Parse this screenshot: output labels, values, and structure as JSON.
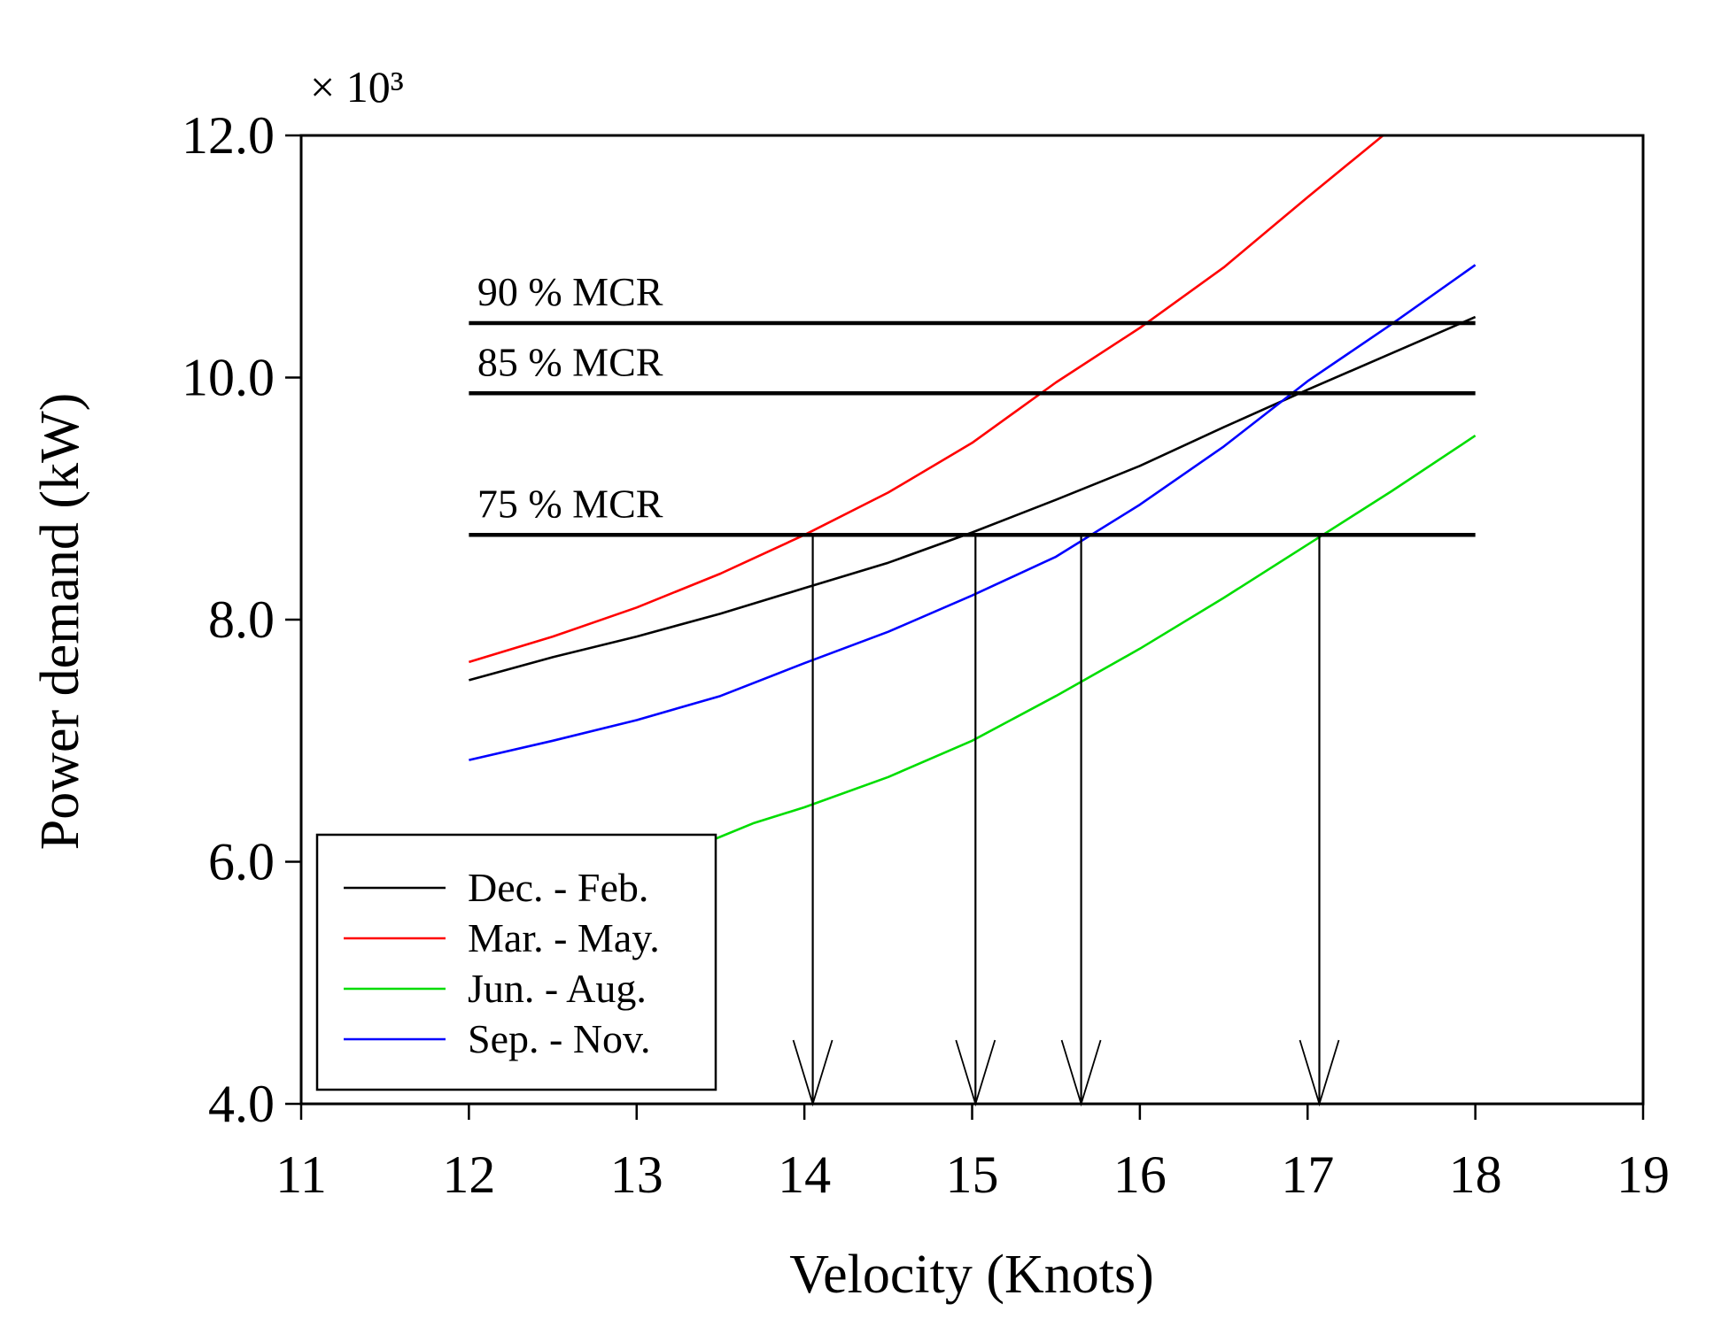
{
  "chart_data": {
    "type": "line",
    "xlabel": "Velocity (Knots)",
    "ylabel": "Power demand (kW)",
    "y_multiplier": "× 10³",
    "xlim": [
      11,
      19
    ],
    "ylim": [
      4.0,
      12.0
    ],
    "x_ticks": [
      "11",
      "12",
      "13",
      "14",
      "15",
      "16",
      "17",
      "18",
      "19"
    ],
    "y_ticks": [
      "4.0",
      "6.0",
      "8.0",
      "10.0",
      "12.0"
    ],
    "x_tick_values": [
      11,
      12,
      13,
      14,
      15,
      16,
      17,
      18,
      19
    ],
    "y_tick_values": [
      4.0,
      6.0,
      8.0,
      10.0,
      12.0
    ],
    "series": [
      {
        "name": "Dec. - Feb.",
        "color": "#000000",
        "x": [
          12,
          12.5,
          13,
          13.5,
          14,
          14.5,
          15,
          15.5,
          16,
          16.5,
          17,
          17.5,
          18
        ],
        "y": [
          7.5,
          7.69,
          7.86,
          8.05,
          8.26,
          8.47,
          8.72,
          8.99,
          9.27,
          9.59,
          9.9,
          10.2,
          10.5
        ]
      },
      {
        "name": "Mar. - May.",
        "color": "#ff0000",
        "x": [
          12,
          12.5,
          13,
          13.5,
          14,
          14.5,
          15,
          15.5,
          16,
          16.5,
          17,
          17.45
        ],
        "y": [
          7.65,
          7.86,
          8.1,
          8.38,
          8.7,
          9.05,
          9.46,
          9.96,
          10.41,
          10.91,
          11.49,
          12.0
        ]
      },
      {
        "name": "Jun. - Aug.",
        "color": "#00dd00",
        "x": [
          13.4,
          13.7,
          14,
          14.5,
          15,
          15.5,
          16,
          16.5,
          17,
          17.5,
          18
        ],
        "y": [
          6.15,
          6.32,
          6.45,
          6.7,
          7.0,
          7.37,
          7.76,
          8.18,
          8.62,
          9.06,
          9.52
        ]
      },
      {
        "name": "Sep. - Nov.",
        "color": "#0000ff",
        "x": [
          12,
          12.5,
          13,
          13.5,
          14,
          14.5,
          15,
          15.5,
          16,
          16.5,
          17,
          17.5,
          18
        ],
        "y": [
          6.84,
          7.0,
          7.17,
          7.37,
          7.64,
          7.9,
          8.2,
          8.52,
          8.95,
          9.43,
          9.97,
          10.44,
          10.93
        ]
      }
    ],
    "reference_lines": [
      {
        "label": "90 % MCR",
        "y": 10.45,
        "x_range": [
          12,
          18
        ],
        "label_x": 12.05
      },
      {
        "label": "85 % MCR",
        "y": 9.87,
        "x_range": [
          12,
          18
        ],
        "label_x": 12.05
      },
      {
        "label": "75 % MCR",
        "y": 8.7,
        "x_range": [
          12,
          18
        ],
        "label_x": 12.05
      }
    ],
    "arrows": [
      {
        "x": 14.05,
        "y_from": 8.7,
        "y_to": 4.0
      },
      {
        "x": 15.02,
        "y_from": 8.7,
        "y_to": 4.0
      },
      {
        "x": 15.65,
        "y_from": 8.7,
        "y_to": 4.0
      },
      {
        "x": 17.07,
        "y_from": 8.7,
        "y_to": 4.0
      }
    ],
    "legend": {
      "placement": "bottom-left",
      "entries": [
        "Dec. - Feb.",
        "Mar. - May.",
        "Jun. - Aug.",
        "Sep. - Nov."
      ]
    }
  }
}
